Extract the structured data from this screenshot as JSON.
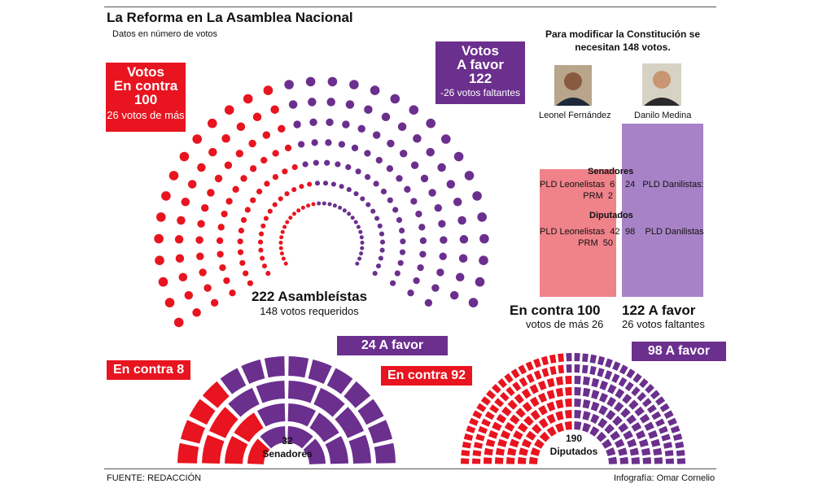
{
  "header": {
    "title": "La Reforma en La Asamblea Nacional",
    "subtitle": "Datos en número de votos"
  },
  "colors": {
    "contra": "#e8141f",
    "favor": "#6b2f8e",
    "contra_light": "#f0828a",
    "favor_light": "#a882c6"
  },
  "contra_box": {
    "line1": "Votos",
    "line2": "En contra",
    "line3": "100",
    "line4": "26 votos de más"
  },
  "favor_box": {
    "line1": "Votos",
    "line2": "A favor",
    "line3": "122",
    "line4": "-26  votos faltantes"
  },
  "assembly": {
    "label": "222 Asambleístas",
    "sublabel": "148 votos requeridos"
  },
  "requirement": {
    "line1": "Para modificar la Constitución se",
    "line2": "necesitan 148 votos."
  },
  "people": {
    "left": "Leonel Fernández",
    "right": "Danilo Medina"
  },
  "breakdown": {
    "senadores_header": "Senadores",
    "diputados_header": "Diputados",
    "left_rows": [
      {
        "label": "PLD Leonelistas",
        "value": "6"
      },
      {
        "label": "PRM",
        "value": "2"
      },
      {
        "label": "PLD Leonelistas",
        "value": "42"
      },
      {
        "label": "PRM",
        "value": "50"
      }
    ],
    "right_rows": [
      {
        "value": "24",
        "label": "PLD Danilistas:"
      },
      {
        "value": "98",
        "label": "PLD Danilistas"
      }
    ]
  },
  "summary": {
    "contra_label": "En contra  100",
    "contra_sub": "votos de más  26",
    "favor_label": "122 A favor",
    "favor_sub": "26  votos faltantes"
  },
  "senado": {
    "contra_tag": "En contra  8",
    "favor_tag": "24 A favor",
    "center_num": "32",
    "center_label": "Senadores"
  },
  "diputados": {
    "contra_tag": "En contra  92",
    "favor_tag": "98 A favor",
    "center_num": "190",
    "center_label": "Diputados"
  },
  "footer": {
    "source": "FUENTE: REDACCIÓN",
    "credit": "Infografía: Omar Cornelio"
  },
  "chart_data": [
    {
      "type": "bar",
      "title": "222 Asambleístas",
      "categories": [
        "En contra",
        "A favor"
      ],
      "values": [
        100,
        122
      ],
      "total": 222,
      "required": 148
    },
    {
      "type": "bar",
      "title": "Senadores",
      "categories": [
        "En contra",
        "A favor"
      ],
      "values": [
        8,
        24
      ],
      "total": 32
    },
    {
      "type": "bar",
      "title": "Diputados",
      "categories": [
        "En contra",
        "A favor"
      ],
      "values": [
        92,
        98
      ],
      "total": 190
    }
  ]
}
